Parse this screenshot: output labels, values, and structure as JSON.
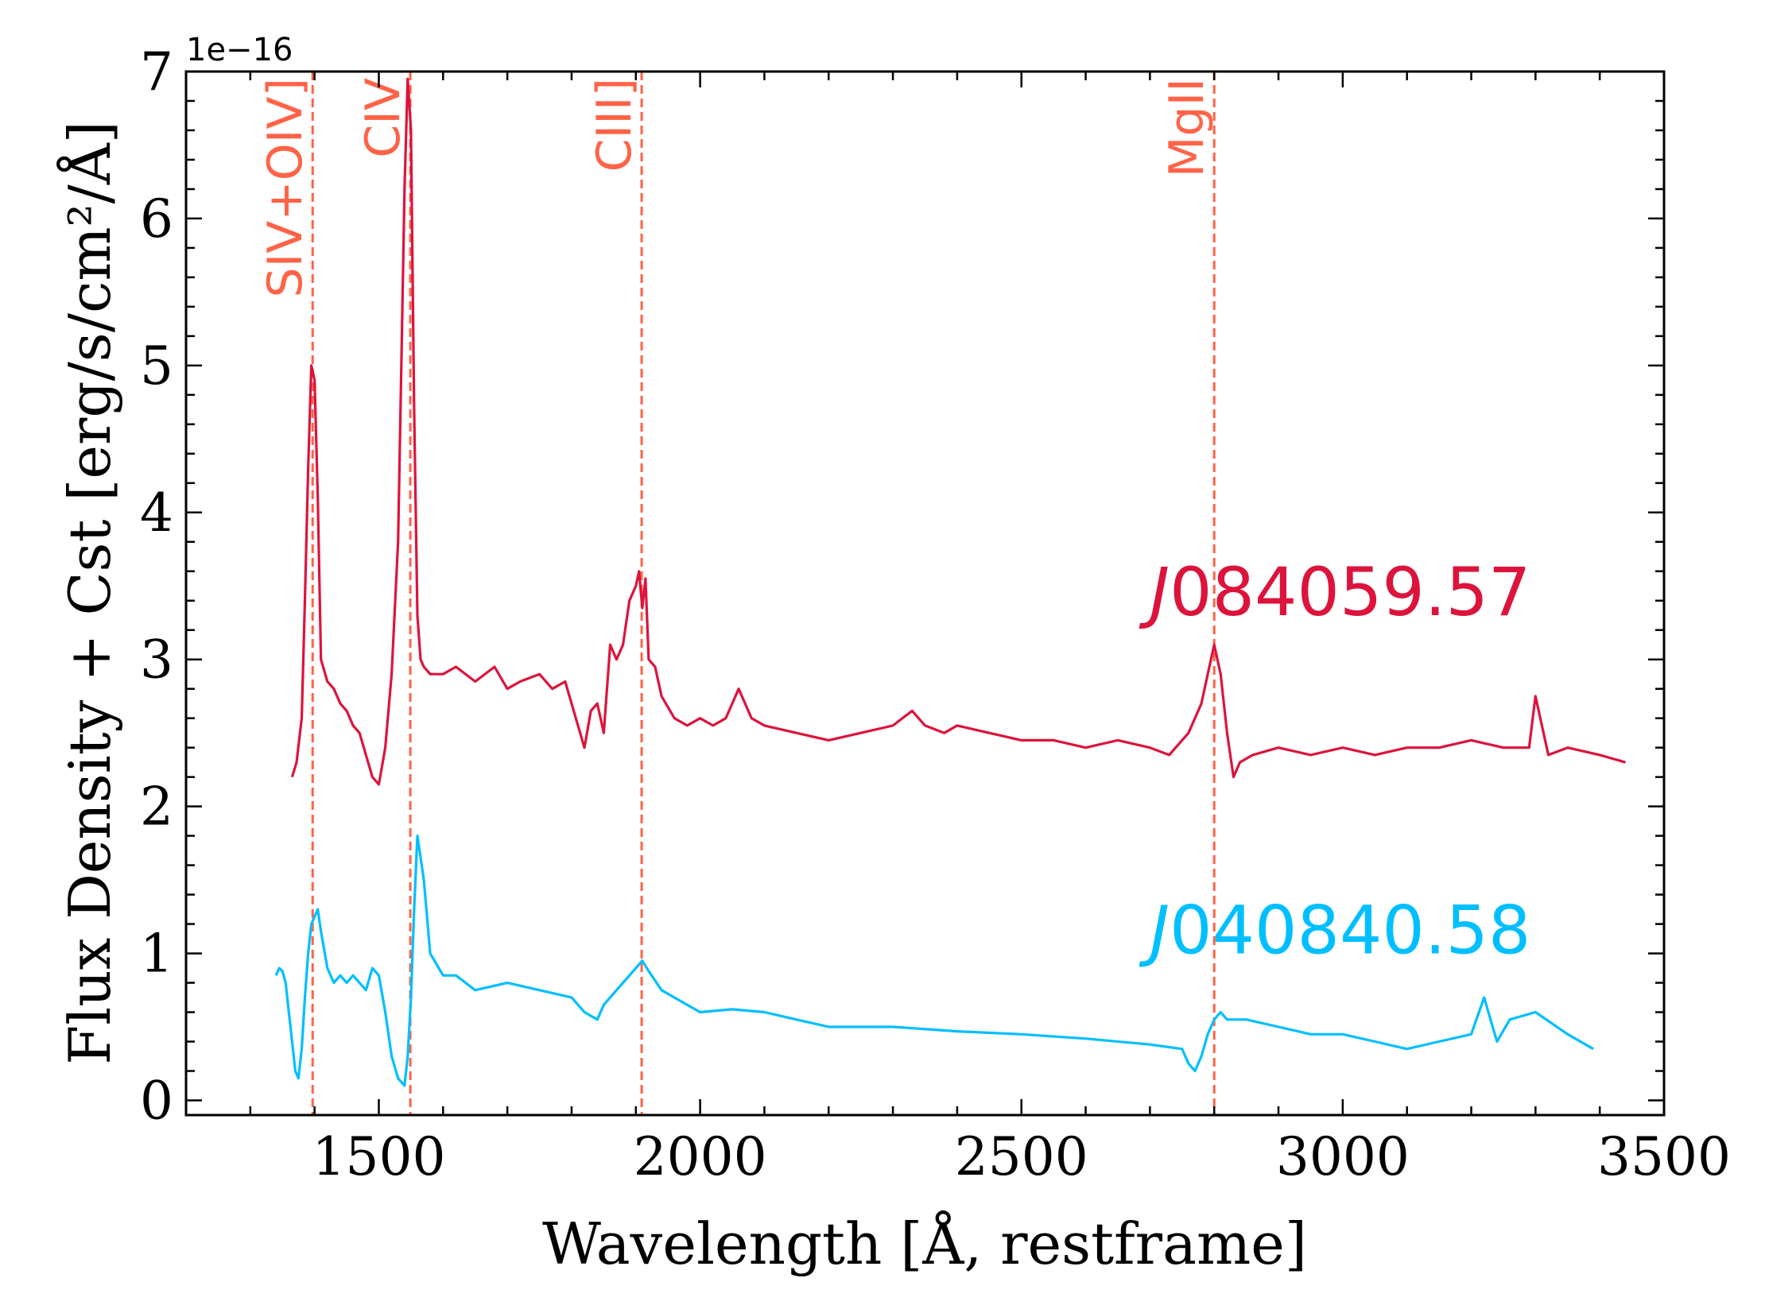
{
  "chart_data": {
    "type": "line",
    "title": "",
    "xlabel": "Wavelength [Å, restframe]",
    "ylabel": "Flux Density + Cst [erg/s/cm²/Å]",
    "y_offset_text": "1e−16",
    "xlim": [
      1200,
      3500
    ],
    "ylim": [
      -0.1,
      7.0
    ],
    "y_scale": 1e-16,
    "xticks": [
      {
        "value": 1500,
        "label": "1500"
      },
      {
        "value": 2000,
        "label": "2000"
      },
      {
        "value": 2500,
        "label": "2500"
      },
      {
        "value": 3000,
        "label": "3000"
      },
      {
        "value": 3500,
        "label": "3500"
      }
    ],
    "yticks": [
      {
        "value": 0,
        "label": "0"
      },
      {
        "value": 1,
        "label": "1"
      },
      {
        "value": 2,
        "label": "2"
      },
      {
        "value": 3,
        "label": "3"
      },
      {
        "value": 4,
        "label": "4"
      },
      {
        "value": 5,
        "label": "5"
      },
      {
        "value": 6,
        "label": "6"
      },
      {
        "value": 7,
        "label": "7"
      }
    ],
    "grid": false,
    "emission_lines": [
      {
        "name": "SIV+OIV]",
        "wavelength": 1397,
        "color": "#ff6347"
      },
      {
        "name": "CIV",
        "wavelength": 1549,
        "color": "#ff6347"
      },
      {
        "name": "CIII]",
        "wavelength": 1909,
        "color": "#ff6347"
      },
      {
        "name": "MgII",
        "wavelength": 2800,
        "color": "#ff6347"
      }
    ],
    "series": [
      {
        "name": "J084059.57",
        "label_prefix": "J",
        "label_rest": "084059.57",
        "label_x": 2700,
        "label_y": 3.3,
        "color": "#dc143c",
        "x": [
          1365,
          1372,
          1380,
          1385,
          1390,
          1395,
          1400,
          1405,
          1410,
          1420,
          1430,
          1440,
          1450,
          1460,
          1470,
          1480,
          1490,
          1500,
          1510,
          1520,
          1530,
          1535,
          1540,
          1545,
          1550,
          1555,
          1560,
          1565,
          1570,
          1580,
          1600,
          1620,
          1650,
          1680,
          1700,
          1720,
          1750,
          1770,
          1790,
          1810,
          1820,
          1830,
          1840,
          1850,
          1860,
          1870,
          1880,
          1890,
          1900,
          1905,
          1910,
          1915,
          1920,
          1930,
          1940,
          1960,
          1980,
          2000,
          2020,
          2040,
          2060,
          2080,
          2100,
          2150,
          2200,
          2250,
          2300,
          2330,
          2350,
          2380,
          2400,
          2450,
          2500,
          2550,
          2600,
          2650,
          2700,
          2730,
          2760,
          2780,
          2790,
          2800,
          2810,
          2820,
          2830,
          2840,
          2860,
          2900,
          2950,
          3000,
          3050,
          3100,
          3150,
          3200,
          3250,
          3290,
          3300,
          3320,
          3350,
          3400,
          3440
        ],
        "values": [
          2.2,
          2.3,
          2.6,
          3.4,
          4.3,
          5.0,
          4.9,
          4.1,
          3.0,
          2.85,
          2.8,
          2.7,
          2.65,
          2.55,
          2.5,
          2.35,
          2.2,
          2.15,
          2.4,
          2.9,
          3.8,
          5.0,
          6.2,
          6.95,
          6.6,
          4.7,
          3.3,
          3.0,
          2.95,
          2.9,
          2.9,
          2.95,
          2.85,
          2.95,
          2.8,
          2.85,
          2.9,
          2.8,
          2.85,
          2.55,
          2.4,
          2.65,
          2.7,
          2.5,
          3.1,
          3.0,
          3.1,
          3.4,
          3.5,
          3.6,
          3.35,
          3.55,
          3.0,
          2.95,
          2.75,
          2.6,
          2.55,
          2.6,
          2.55,
          2.6,
          2.8,
          2.6,
          2.55,
          2.5,
          2.45,
          2.5,
          2.55,
          2.65,
          2.55,
          2.5,
          2.55,
          2.5,
          2.45,
          2.45,
          2.4,
          2.45,
          2.4,
          2.35,
          2.5,
          2.7,
          2.9,
          3.1,
          2.9,
          2.5,
          2.2,
          2.3,
          2.35,
          2.4,
          2.35,
          2.4,
          2.35,
          2.4,
          2.4,
          2.45,
          2.4,
          2.4,
          2.75,
          2.35,
          2.4,
          2.35,
          2.3
        ]
      },
      {
        "name": "J040840.58",
        "label_prefix": "J",
        "label_rest": "040840.58",
        "label_x": 2700,
        "label_y": 1.0,
        "color": "#00bfff",
        "x": [
          1340,
          1345,
          1350,
          1355,
          1360,
          1365,
          1370,
          1375,
          1380,
          1385,
          1390,
          1395,
          1400,
          1405,
          1410,
          1420,
          1430,
          1440,
          1450,
          1460,
          1470,
          1480,
          1490,
          1500,
          1510,
          1520,
          1530,
          1540,
          1545,
          1550,
          1555,
          1560,
          1570,
          1580,
          1600,
          1620,
          1650,
          1700,
          1750,
          1800,
          1820,
          1840,
          1850,
          1870,
          1890,
          1900,
          1910,
          1920,
          1940,
          1960,
          1980,
          2000,
          2050,
          2100,
          2150,
          2200,
          2300,
          2400,
          2500,
          2600,
          2700,
          2750,
          2760,
          2770,
          2780,
          2790,
          2800,
          2810,
          2820,
          2850,
          2900,
          2950,
          3000,
          3050,
          3100,
          3150,
          3200,
          3220,
          3240,
          3260,
          3300,
          3350,
          3390
        ],
        "values": [
          0.85,
          0.9,
          0.88,
          0.8,
          0.6,
          0.4,
          0.2,
          0.15,
          0.35,
          0.7,
          1.0,
          1.2,
          1.25,
          1.3,
          1.15,
          0.9,
          0.8,
          0.85,
          0.8,
          0.85,
          0.8,
          0.75,
          0.9,
          0.85,
          0.6,
          0.3,
          0.15,
          0.1,
          0.3,
          0.7,
          1.3,
          1.8,
          1.5,
          1.0,
          0.85,
          0.85,
          0.75,
          0.8,
          0.75,
          0.7,
          0.6,
          0.55,
          0.65,
          0.75,
          0.85,
          0.9,
          0.95,
          0.88,
          0.75,
          0.7,
          0.65,
          0.6,
          0.62,
          0.6,
          0.55,
          0.5,
          0.5,
          0.47,
          0.45,
          0.42,
          0.38,
          0.35,
          0.25,
          0.2,
          0.3,
          0.45,
          0.55,
          0.6,
          0.55,
          0.55,
          0.5,
          0.45,
          0.45,
          0.4,
          0.35,
          0.4,
          0.45,
          0.7,
          0.4,
          0.55,
          0.6,
          0.45,
          0.35
        ]
      }
    ]
  }
}
